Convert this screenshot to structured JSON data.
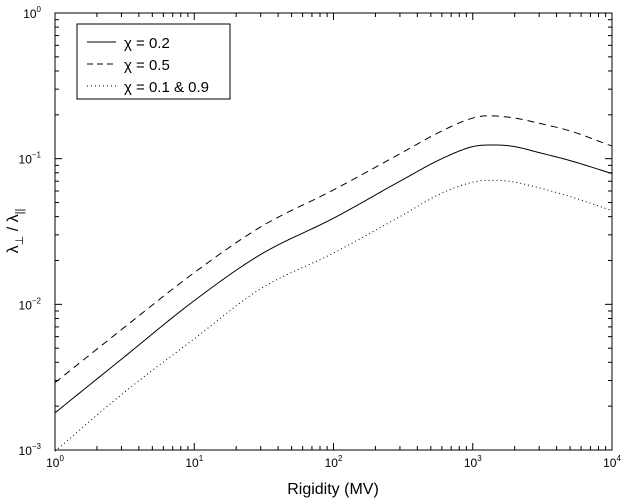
{
  "chart_data": {
    "type": "line",
    "title": "",
    "xlabel": "Rigidity (MV)",
    "ylabel": {
      "base": "λ",
      "sub1": "⊥",
      "slash": " / ",
      "base2": "λ",
      "sub2": "||"
    },
    "xscale": "log",
    "yscale": "log",
    "xlim": [
      1,
      10000
    ],
    "ylim": [
      0.001,
      1
    ],
    "grid": false,
    "legend_position": "top-left",
    "x_ticks": [
      {
        "value": 1,
        "base": "10",
        "exp": "0"
      },
      {
        "value": 10,
        "base": "10",
        "exp": "1"
      },
      {
        "value": 100,
        "base": "10",
        "exp": "2"
      },
      {
        "value": 1000,
        "base": "10",
        "exp": "3"
      },
      {
        "value": 10000,
        "base": "10",
        "exp": "4"
      }
    ],
    "y_ticks": [
      {
        "value": 0.001,
        "base": "10",
        "exp": "−3"
      },
      {
        "value": 0.01,
        "base": "10",
        "exp": "−2"
      },
      {
        "value": 0.1,
        "base": "10",
        "exp": "−1"
      },
      {
        "value": 1,
        "base": "10",
        "exp": "0"
      }
    ],
    "series": [
      {
        "name": "χ = 0.2",
        "style": "solid",
        "color": "#000000",
        "x": [
          1,
          3,
          10,
          30,
          100,
          300,
          600,
          1000,
          1300,
          1500,
          2000,
          3000,
          5000,
          10000
        ],
        "y": [
          0.0018,
          0.0042,
          0.0106,
          0.022,
          0.039,
          0.07,
          0.1,
          0.121,
          0.124,
          0.124,
          0.121,
          0.11,
          0.097,
          0.079
        ]
      },
      {
        "name": "χ = 0.5",
        "style": "dashed",
        "color": "#000000",
        "x": [
          1,
          3,
          10,
          30,
          100,
          300,
          600,
          1000,
          1300,
          1500,
          2000,
          3000,
          5000,
          10000
        ],
        "y": [
          0.0029,
          0.0067,
          0.0165,
          0.034,
          0.061,
          0.108,
          0.155,
          0.19,
          0.197,
          0.196,
          0.19,
          0.175,
          0.155,
          0.122
        ]
      },
      {
        "name": "χ = 0.1 & 0.9",
        "style": "dotted",
        "color": "#000000",
        "x": [
          1,
          3,
          10,
          30,
          100,
          300,
          600,
          1000,
          1300,
          1500,
          2000,
          3000,
          5000,
          10000
        ],
        "y": [
          0.00098,
          0.0024,
          0.0058,
          0.0128,
          0.0225,
          0.04,
          0.058,
          0.069,
          0.071,
          0.071,
          0.069,
          0.063,
          0.055,
          0.044
        ]
      }
    ]
  }
}
